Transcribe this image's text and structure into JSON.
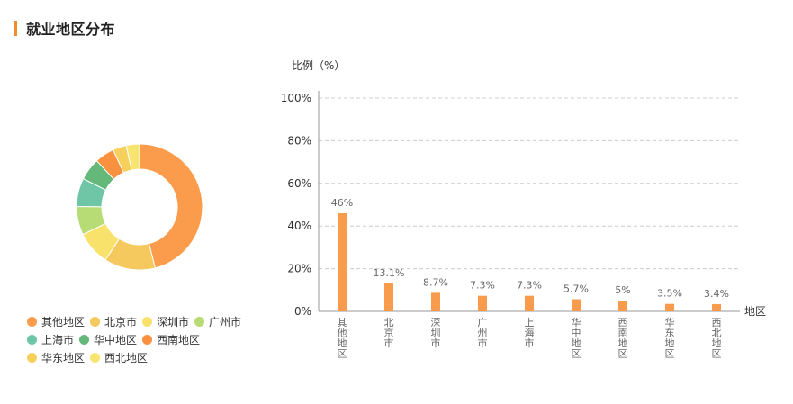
{
  "page": {
    "title": "就业地区分布"
  },
  "colors": {
    "accent": "#f08c2b",
    "bar": "#f99b4c",
    "grid": "#cccccc",
    "axis": "#999999",
    "label": "#666666"
  },
  "chart_data": [
    {
      "type": "pie",
      "variant": "donut",
      "categories": [
        "其他地区",
        "北京市",
        "深圳市",
        "广州市",
        "上海市",
        "华中地区",
        "西南地区",
        "华东地区",
        "西北地区"
      ],
      "values": [
        46,
        13.1,
        8.7,
        7.3,
        7.3,
        5.7,
        5,
        3.5,
        3.4
      ],
      "colors": [
        "#fb9c4c",
        "#f5c95d",
        "#f8e26c",
        "#b8dc75",
        "#6fc6a7",
        "#64b97a",
        "#f9913f",
        "#f6cf5d",
        "#f8e470"
      ],
      "legend": "bottom-left"
    },
    {
      "type": "bar",
      "ylabel": "比例（%）",
      "xlabel": "地区",
      "categories": [
        "其他地区",
        "北京市",
        "深圳市",
        "广州市",
        "上海市",
        "华中地区",
        "西南地区",
        "华东地区",
        "西北地区"
      ],
      "values": [
        46,
        13.1,
        8.7,
        7.3,
        7.3,
        5.7,
        5,
        3.5,
        3.4
      ],
      "value_labels": [
        "46%",
        "13.1%",
        "8.7%",
        "7.3%",
        "7.3%",
        "5.7%",
        "5%",
        "3.5%",
        "3.4%"
      ],
      "ylim": [
        0,
        100
      ],
      "yticks": [
        0,
        20,
        40,
        60,
        80,
        100
      ],
      "ytick_labels": [
        "0%",
        "20%",
        "40%",
        "60%",
        "80%",
        "100%"
      ],
      "grid": true
    }
  ]
}
